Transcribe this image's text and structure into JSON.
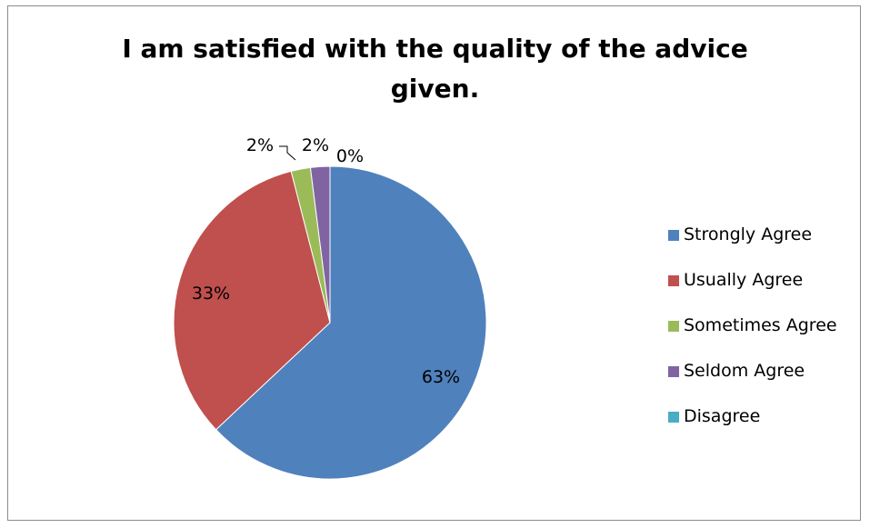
{
  "chart_data": {
    "type": "pie",
    "title_lines": [
      "I am satisfied with the quality of the advice",
      "given."
    ],
    "slices": [
      {
        "label": "Strongly Agree",
        "value": 63,
        "display": "63%",
        "color": "#4f81bd"
      },
      {
        "label": "Usually Agree",
        "value": 33,
        "display": "33%",
        "color": "#c0504d"
      },
      {
        "label": "Sometimes Agree",
        "value": 2,
        "display": "2%",
        "color": "#9bbb59"
      },
      {
        "label": "Seldom Agree",
        "value": 2,
        "display": "2%",
        "color": "#8064a2"
      },
      {
        "label": "Disagree",
        "value": 0,
        "display": "0%",
        "color": "#4bacc6"
      }
    ],
    "legend_position": "right"
  }
}
